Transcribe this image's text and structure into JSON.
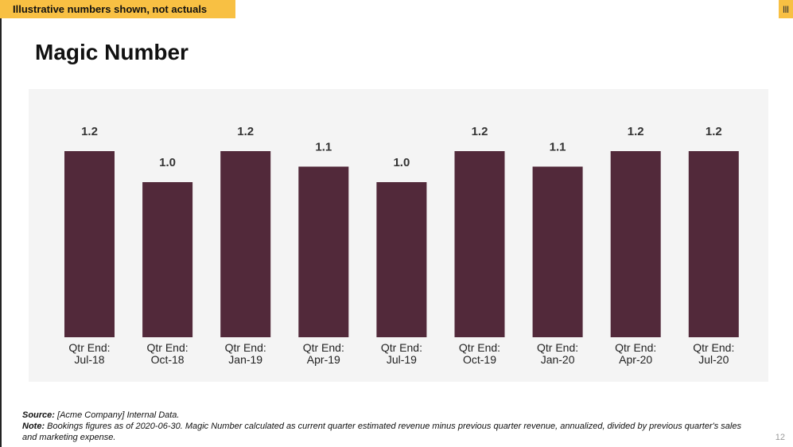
{
  "banner": {
    "text": "Illustrative numbers shown, not actuals"
  },
  "corner_mark": "|||",
  "title": "Magic Number",
  "colors": {
    "bar": "#52293a",
    "banner": "#f8c043",
    "panel": "#f4f4f4"
  },
  "chart_data": {
    "type": "bar",
    "title": "",
    "xlabel": "",
    "ylabel": "",
    "ylim": [
      0,
      1.2
    ],
    "grid": false,
    "categories": [
      [
        "Qtr End:",
        "Jul-18"
      ],
      [
        "Qtr End:",
        "Oct-18"
      ],
      [
        "Qtr End:",
        "Jan-19"
      ],
      [
        "Qtr End:",
        "Apr-19"
      ],
      [
        "Qtr End:",
        "Jul-19"
      ],
      [
        "Qtr End:",
        "Oct-19"
      ],
      [
        "Qtr End:",
        "Jan-20"
      ],
      [
        "Qtr End:",
        "Apr-20"
      ],
      [
        "Qtr End:",
        "Jul-20"
      ]
    ],
    "values": [
      1.2,
      1.0,
      1.2,
      1.1,
      1.0,
      1.2,
      1.1,
      1.2,
      1.2
    ],
    "value_labels": [
      "1.2",
      "1.0",
      "1.2",
      "1.1",
      "1.0",
      "1.2",
      "1.1",
      "1.2",
      "1.2"
    ]
  },
  "footnote": {
    "source_label": "Source:",
    "source_text": " [Acme Company] Internal Data.",
    "note_label": "Note:",
    "note_text": " Bookings figures as of 2020-06-30.  Magic Number calculated as current quarter estimated revenue minus previous quarter revenue, annualized, divided by previous quarter's sales and marketing expense."
  },
  "page_number": "12"
}
